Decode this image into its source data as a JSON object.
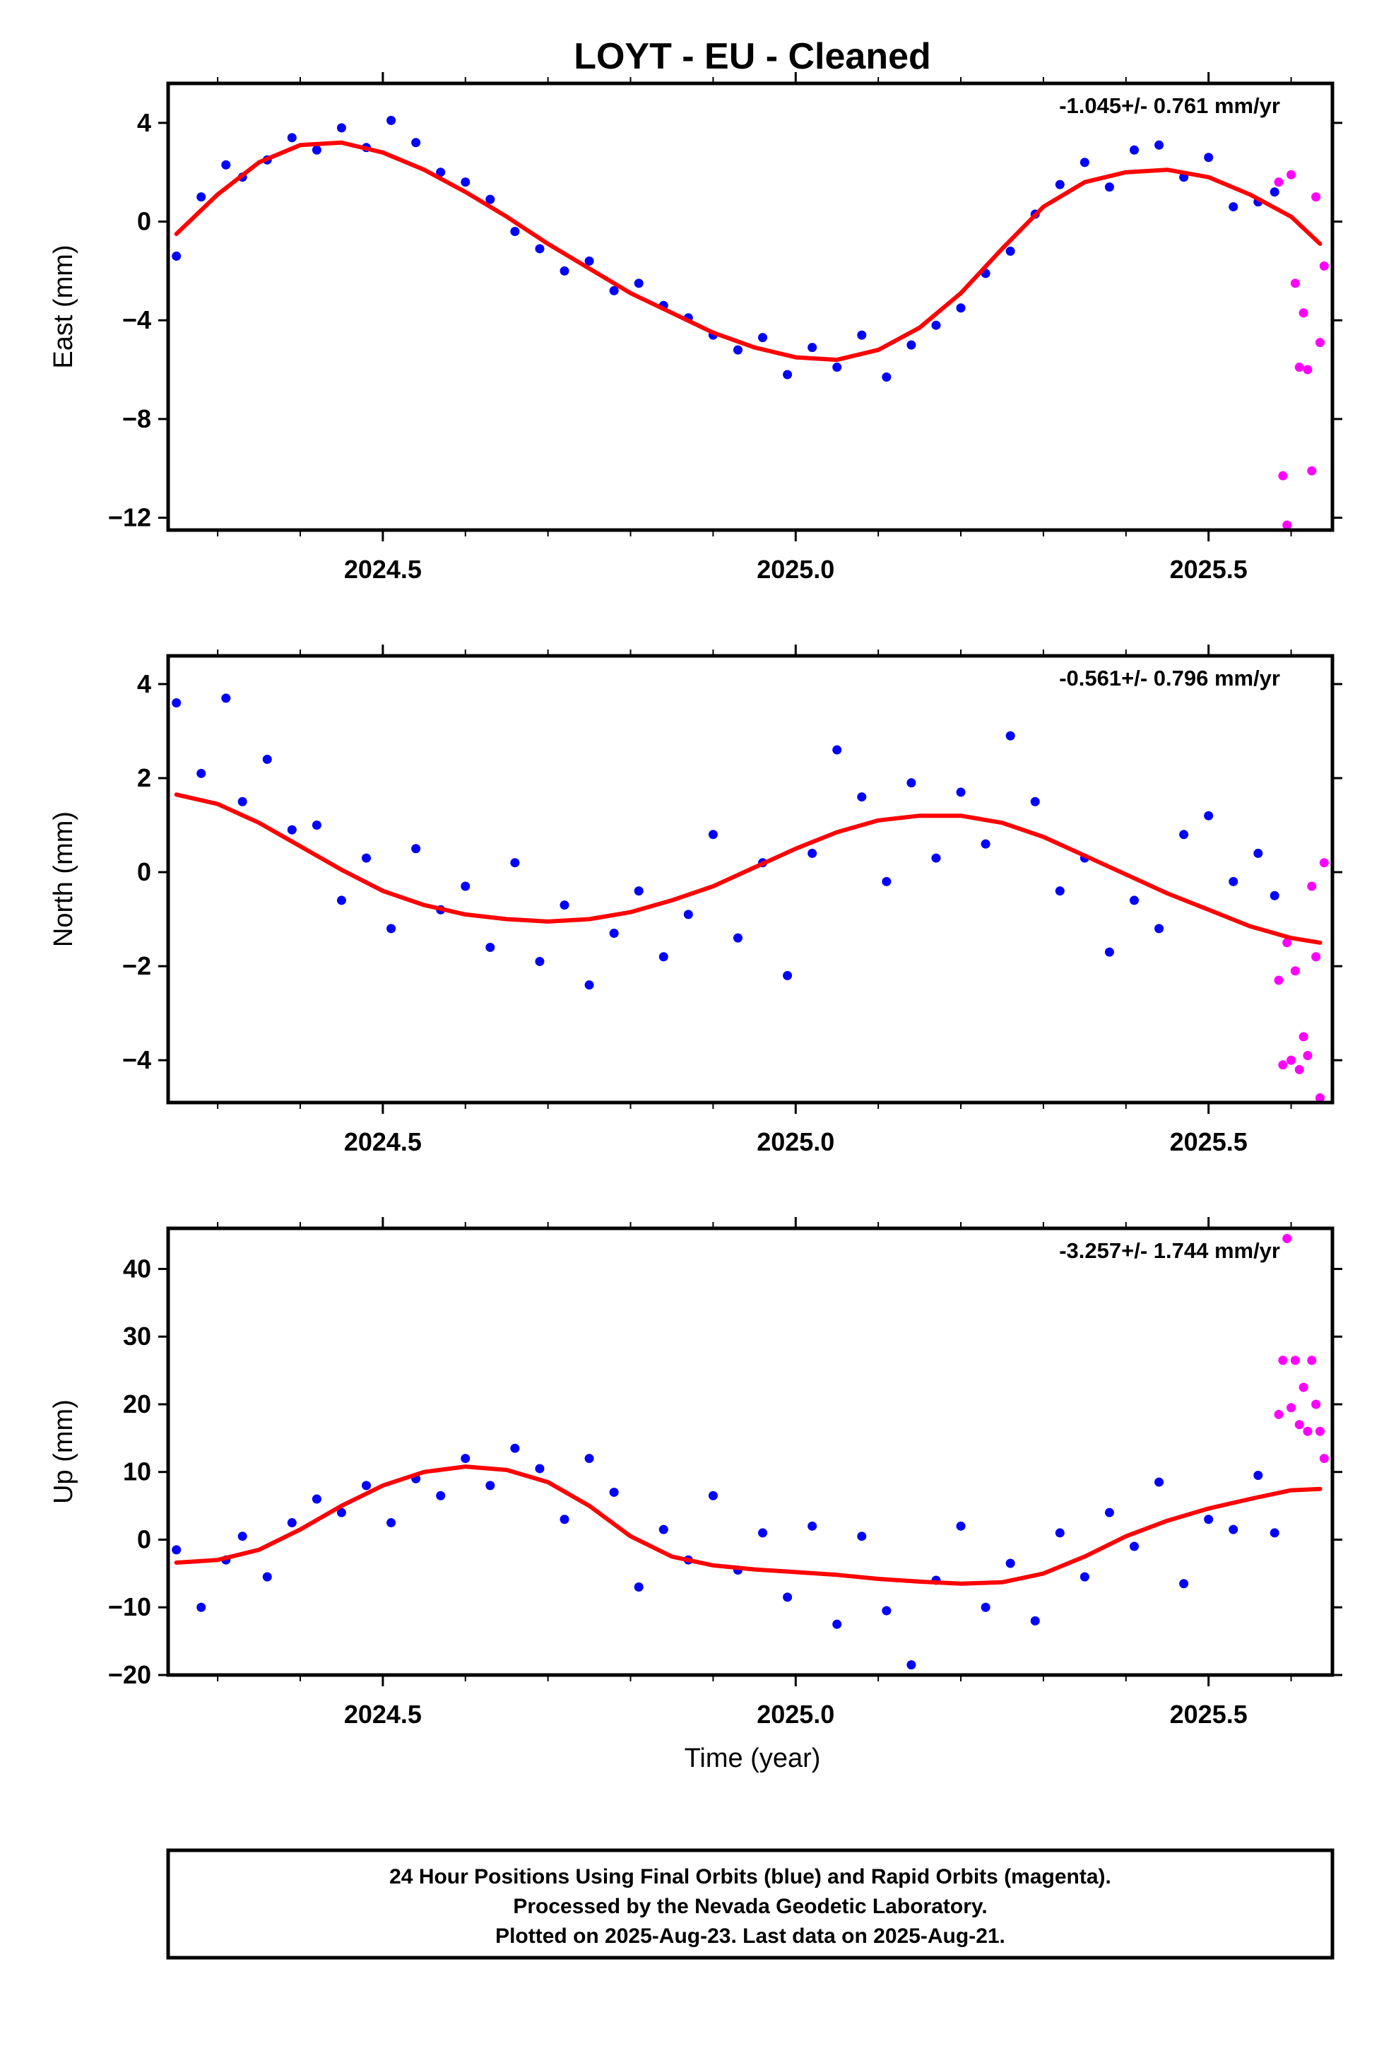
{
  "title": "LOYT  - EU - Cleaned",
  "x_axis": {
    "label": "Time (year)",
    "range": [
      2024.24,
      2025.65
    ],
    "tick_labels": [
      "2024.5",
      "2025.0",
      "2025.5"
    ],
    "ticks": [
      2024.5,
      2025.0,
      2025.5
    ],
    "minor_ticks": [
      2024.3,
      2024.4,
      2024.6,
      2024.7,
      2024.8,
      2024.9,
      2025.1,
      2025.2,
      2025.3,
      2025.4,
      2025.6
    ]
  },
  "colors": {
    "final_orbits": "#0000ff",
    "rapid_orbits": "#ff00ff",
    "model_curve": "#ff0000",
    "frame": "#000000"
  },
  "footer": {
    "line1": "24 Hour Positions Using Final Orbits (blue) and Rapid Orbits (magenta).",
    "line2": "Processed by the Nevada Geodetic Laboratory.",
    "line3": "Plotted on 2025-Aug-23. Last data on 2025-Aug-21."
  },
  "chart_data": [
    {
      "type": "scatter",
      "component": "east",
      "ylabel": "East (mm)",
      "ylim": [
        -12.5,
        5.6
      ],
      "yticks": [
        4,
        0,
        -4,
        -8,
        -12
      ],
      "ytick_labels": [
        "4",
        "0",
        "−4",
        "−8",
        "−12"
      ],
      "rate_label": "-1.045+/- 0.761 mm/yr",
      "series": [
        {
          "name": "Final Orbits (blue)",
          "color": "#0000ff",
          "x": [
            2024.25,
            2024.28,
            2024.31,
            2024.33,
            2024.36,
            2024.39,
            2024.42,
            2024.45,
            2024.48,
            2024.51,
            2024.54,
            2024.57,
            2024.6,
            2024.63,
            2024.66,
            2024.69,
            2024.72,
            2024.75,
            2024.78,
            2024.81,
            2024.84,
            2024.87,
            2024.9,
            2024.93,
            2024.96,
            2024.99,
            2025.02,
            2025.05,
            2025.08,
            2025.11,
            2025.14,
            2025.17,
            2025.2,
            2025.23,
            2025.26,
            2025.29,
            2025.32,
            2025.35,
            2025.38,
            2025.41,
            2025.44,
            2025.47,
            2025.5,
            2025.53,
            2025.56,
            2025.58
          ],
          "y": [
            -1.4,
            1.0,
            2.3,
            1.8,
            2.5,
            3.4,
            2.9,
            3.8,
            3.0,
            4.1,
            3.2,
            2.0,
            1.6,
            0.9,
            -0.4,
            -1.1,
            -2.0,
            -1.6,
            -2.8,
            -2.5,
            -3.4,
            -3.9,
            -4.6,
            -5.2,
            -4.7,
            -6.2,
            -5.1,
            -5.9,
            -4.6,
            -6.3,
            -5.0,
            -4.2,
            -3.5,
            -2.1,
            -1.2,
            0.3,
            1.5,
            2.4,
            1.4,
            2.9,
            3.1,
            1.8,
            2.6,
            0.6,
            0.8,
            1.2
          ]
        },
        {
          "name": "Rapid Orbits (magenta)",
          "color": "#ff00ff",
          "x": [
            2025.585,
            2025.59,
            2025.595,
            2025.6,
            2025.605,
            2025.61,
            2025.615,
            2025.62,
            2025.625,
            2025.63,
            2025.635,
            2025.64
          ],
          "y": [
            1.6,
            -10.3,
            -12.3,
            1.9,
            -2.5,
            -5.9,
            -3.7,
            -6.0,
            -10.1,
            1.0,
            -4.9,
            -1.8
          ]
        },
        {
          "name": "Model",
          "color": "#ff0000",
          "x": [
            2024.25,
            2024.3,
            2024.35,
            2024.4,
            2024.45,
            2024.5,
            2024.55,
            2024.6,
            2024.65,
            2024.7,
            2024.75,
            2024.8,
            2024.85,
            2024.9,
            2024.95,
            2025.0,
            2025.05,
            2025.1,
            2025.15,
            2025.2,
            2025.25,
            2025.3,
            2025.35,
            2025.4,
            2025.45,
            2025.5,
            2025.55,
            2025.6,
            2025.635
          ],
          "y": [
            -0.5,
            1.1,
            2.4,
            3.1,
            3.2,
            2.8,
            2.1,
            1.2,
            0.2,
            -0.9,
            -1.9,
            -2.9,
            -3.7,
            -4.5,
            -5.1,
            -5.5,
            -5.6,
            -5.2,
            -4.3,
            -2.9,
            -1.1,
            0.6,
            1.6,
            2.0,
            2.1,
            1.8,
            1.1,
            0.2,
            -0.9
          ]
        }
      ]
    },
    {
      "type": "scatter",
      "component": "north",
      "ylabel": "North (mm)",
      "ylim": [
        -4.9,
        4.6
      ],
      "yticks": [
        4,
        2,
        0,
        -2,
        -4
      ],
      "ytick_labels": [
        "4",
        "2",
        "0",
        "−2",
        "−4"
      ],
      "rate_label": "-0.561+/- 0.796 mm/yr",
      "series": [
        {
          "name": "Final Orbits (blue)",
          "color": "#0000ff",
          "x": [
            2024.25,
            2024.28,
            2024.31,
            2024.33,
            2024.36,
            2024.39,
            2024.42,
            2024.45,
            2024.48,
            2024.51,
            2024.54,
            2024.57,
            2024.6,
            2024.63,
            2024.66,
            2024.69,
            2024.72,
            2024.75,
            2024.78,
            2024.81,
            2024.84,
            2024.87,
            2024.9,
            2024.93,
            2024.96,
            2024.99,
            2025.02,
            2025.05,
            2025.08,
            2025.11,
            2025.14,
            2025.17,
            2025.2,
            2025.23,
            2025.26,
            2025.29,
            2025.32,
            2025.35,
            2025.38,
            2025.41,
            2025.44,
            2025.47,
            2025.5,
            2025.53,
            2025.56,
            2025.58
          ],
          "y": [
            3.6,
            2.1,
            3.7,
            1.5,
            2.4,
            0.9,
            1.0,
            -0.6,
            0.3,
            -1.2,
            0.5,
            -0.8,
            -0.3,
            -1.6,
            0.2,
            -1.9,
            -0.7,
            -2.4,
            -1.3,
            -0.4,
            -1.8,
            -0.9,
            0.8,
            -1.4,
            0.2,
            -2.2,
            0.4,
            2.6,
            1.6,
            -0.2,
            1.9,
            0.3,
            1.7,
            0.6,
            2.9,
            1.5,
            -0.4,
            0.3,
            -1.7,
            -0.6,
            -1.2,
            0.8,
            1.2,
            -0.2,
            0.4,
            -0.5
          ]
        },
        {
          "name": "Rapid Orbits (magenta)",
          "color": "#ff00ff",
          "x": [
            2025.585,
            2025.59,
            2025.595,
            2025.6,
            2025.605,
            2025.61,
            2025.615,
            2025.62,
            2025.625,
            2025.63,
            2025.635,
            2025.64
          ],
          "y": [
            -2.3,
            -4.1,
            -1.5,
            -4.0,
            -2.1,
            -4.2,
            -3.5,
            -3.9,
            -0.3,
            -1.8,
            -4.8,
            0.2
          ]
        },
        {
          "name": "Model",
          "color": "#ff0000",
          "x": [
            2024.25,
            2024.3,
            2024.35,
            2024.4,
            2024.45,
            2024.5,
            2024.55,
            2024.6,
            2024.65,
            2024.7,
            2024.75,
            2024.8,
            2024.85,
            2024.9,
            2024.95,
            2025.0,
            2025.05,
            2025.1,
            2025.15,
            2025.2,
            2025.25,
            2025.3,
            2025.35,
            2025.4,
            2025.45,
            2025.5,
            2025.55,
            2025.6,
            2025.635
          ],
          "y": [
            1.65,
            1.45,
            1.05,
            0.55,
            0.05,
            -0.4,
            -0.7,
            -0.9,
            -1.0,
            -1.05,
            -1.0,
            -0.85,
            -0.6,
            -0.3,
            0.1,
            0.5,
            0.85,
            1.1,
            1.2,
            1.2,
            1.05,
            0.75,
            0.35,
            -0.05,
            -0.45,
            -0.8,
            -1.15,
            -1.4,
            -1.5
          ]
        }
      ]
    },
    {
      "type": "scatter",
      "component": "up",
      "ylabel": "Up (mm)",
      "ylim": [
        -20,
        46
      ],
      "yticks": [
        40,
        30,
        20,
        10,
        0,
        -10,
        -20
      ],
      "ytick_labels": [
        "40",
        "30",
        "20",
        "10",
        "0",
        "−10",
        "−20"
      ],
      "rate_label": "-3.257+/- 1.744 mm/yr",
      "series": [
        {
          "name": "Final Orbits (blue)",
          "color": "#0000ff",
          "x": [
            2024.25,
            2024.28,
            2024.31,
            2024.33,
            2024.36,
            2024.39,
            2024.42,
            2024.45,
            2024.48,
            2024.51,
            2024.54,
            2024.57,
            2024.6,
            2024.63,
            2024.66,
            2024.69,
            2024.72,
            2024.75,
            2024.78,
            2024.81,
            2024.84,
            2024.87,
            2024.9,
            2024.93,
            2024.96,
            2024.99,
            2025.02,
            2025.05,
            2025.08,
            2025.11,
            2025.14,
            2025.17,
            2025.2,
            2025.23,
            2025.26,
            2025.29,
            2025.32,
            2025.35,
            2025.38,
            2025.41,
            2025.44,
            2025.47,
            2025.5,
            2025.53,
            2025.56,
            2025.58
          ],
          "y": [
            -1.5,
            -10.0,
            -3.0,
            0.5,
            -5.5,
            2.5,
            6.0,
            4.0,
            8.0,
            2.5,
            9.0,
            6.5,
            12.0,
            8.0,
            13.5,
            10.5,
            3.0,
            12.0,
            7.0,
            -7.0,
            1.5,
            -3.0,
            6.5,
            -4.5,
            1.0,
            -8.5,
            2.0,
            -12.5,
            0.5,
            -10.5,
            -18.5,
            -6.0,
            2.0,
            -10.0,
            -3.5,
            -12.0,
            1.0,
            -5.5,
            4.0,
            -1.0,
            8.5,
            -6.5,
            3.0,
            1.5,
            9.5,
            1.0
          ]
        },
        {
          "name": "Rapid Orbits (magenta)",
          "color": "#ff00ff",
          "x": [
            2025.585,
            2025.59,
            2025.595,
            2025.6,
            2025.605,
            2025.61,
            2025.615,
            2025.62,
            2025.625,
            2025.63,
            2025.635,
            2025.64
          ],
          "y": [
            18.5,
            26.5,
            44.5,
            19.5,
            26.5,
            17.0,
            22.5,
            16.0,
            26.5,
            20.0,
            16.0,
            12.0
          ]
        },
        {
          "name": "Model",
          "color": "#ff0000",
          "x": [
            2024.25,
            2024.3,
            2024.35,
            2024.4,
            2024.45,
            2024.5,
            2024.55,
            2024.6,
            2024.65,
            2024.7,
            2024.75,
            2024.8,
            2024.85,
            2024.9,
            2024.95,
            2025.0,
            2025.05,
            2025.1,
            2025.15,
            2025.2,
            2025.25,
            2025.3,
            2025.35,
            2025.4,
            2025.45,
            2025.5,
            2025.55,
            2025.6,
            2025.635
          ],
          "y": [
            -3.4,
            -3.0,
            -1.5,
            1.5,
            5.0,
            8.0,
            10.0,
            10.8,
            10.3,
            8.5,
            5.0,
            0.5,
            -2.5,
            -3.8,
            -4.4,
            -4.8,
            -5.2,
            -5.8,
            -6.2,
            -6.5,
            -6.3,
            -5.0,
            -2.5,
            0.5,
            2.8,
            4.6,
            6.0,
            7.3,
            7.5
          ]
        }
      ]
    }
  ]
}
